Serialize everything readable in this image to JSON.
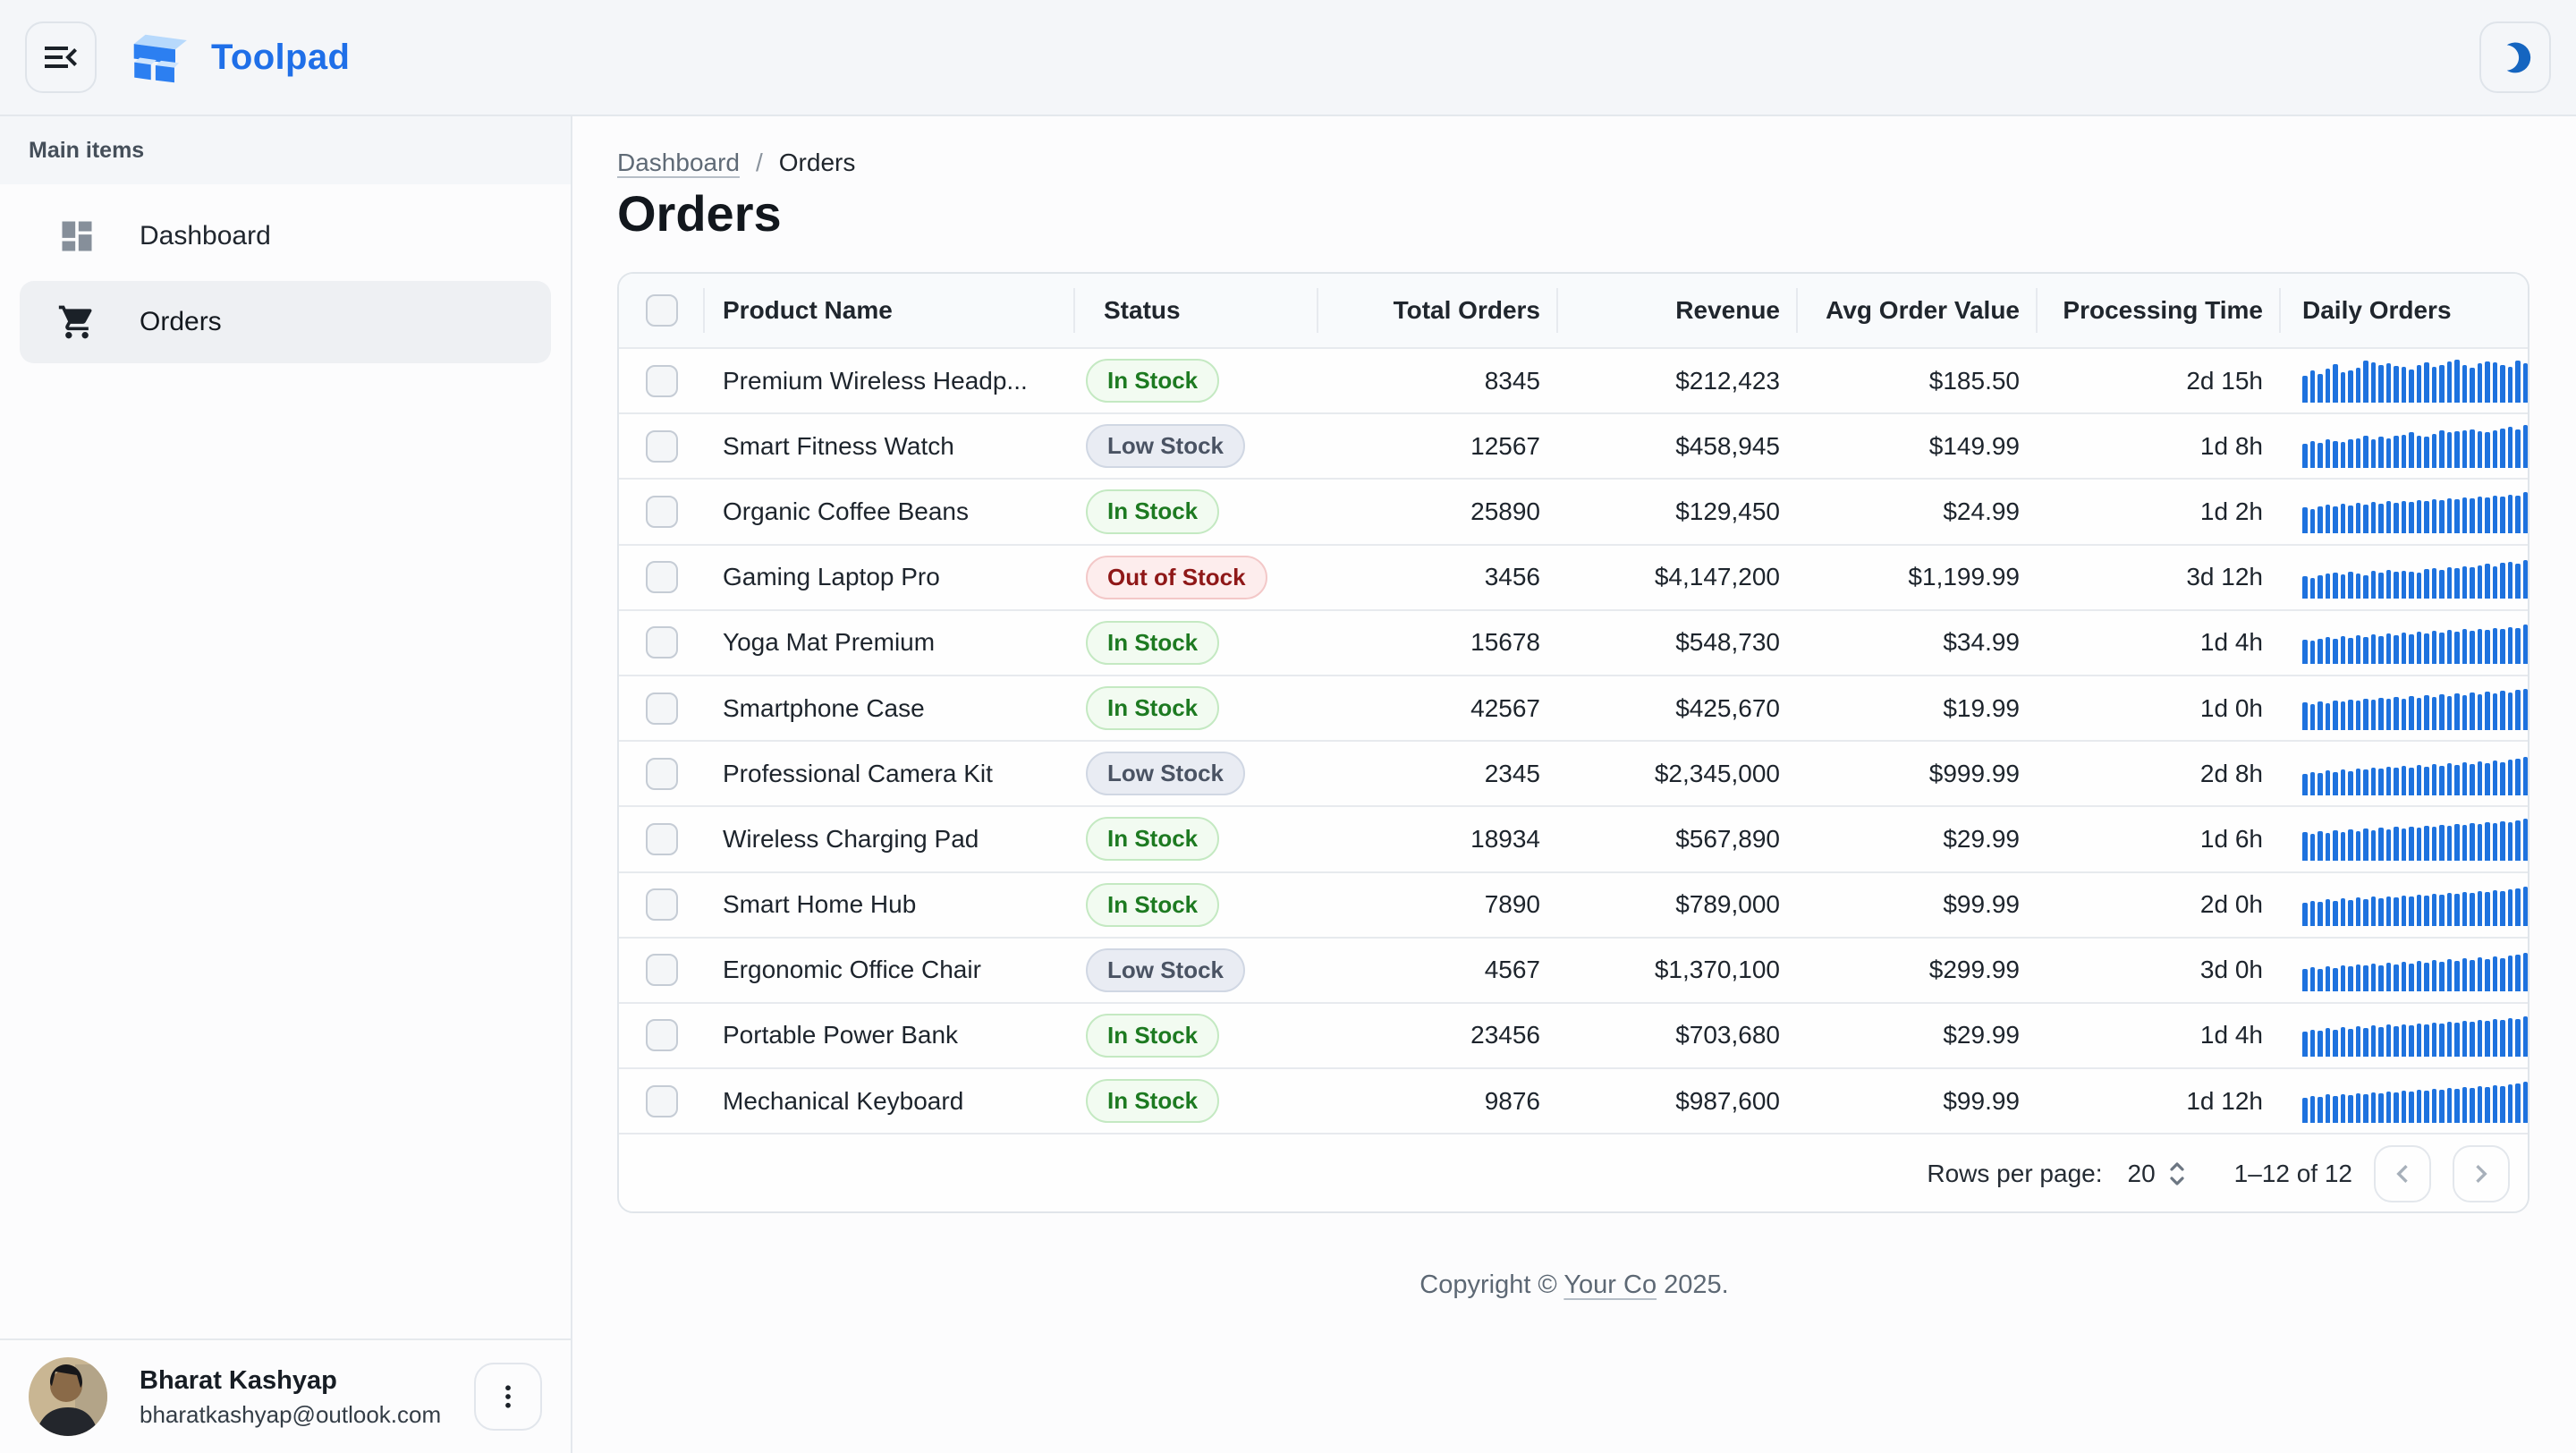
{
  "app": {
    "title": "Toolpad"
  },
  "colors": {
    "brand_blue": "#1f6fe8",
    "moon_blue": "#1565c0",
    "bar_blue": "#1e72de",
    "chip_success_text": "#1d7a21",
    "chip_neutral_text": "#4a5363",
    "chip_error_text": "#8f1818",
    "topbar_bg": "#f4f6f9",
    "selected_item_bg": "#eef0f3"
  },
  "sidebar": {
    "section_label": "Main items",
    "items": [
      {
        "label": "Dashboard",
        "icon": "dashboard-icon",
        "active": false
      },
      {
        "label": "Orders",
        "icon": "cart-icon",
        "active": true
      }
    ],
    "user": {
      "name": "Bharat Kashyap",
      "email": "bharatkashyap@outlook.com"
    }
  },
  "breadcrumb": {
    "dashboard": "Dashboard",
    "separator": "/",
    "current": "Orders"
  },
  "page": {
    "title": "Orders"
  },
  "table": {
    "columns": [
      {
        "label": "Product Name"
      },
      {
        "label": "Status"
      },
      {
        "label": "Total Orders"
      },
      {
        "label": "Revenue"
      },
      {
        "label": "Avg Order Value"
      },
      {
        "label": "Processing Time"
      },
      {
        "label": "Daily Orders"
      }
    ],
    "rows": [
      {
        "name": "Premium Wireless Headp...",
        "status": "In Stock",
        "status_type": "success",
        "total_orders": "8345",
        "revenue": "$212,423",
        "avg_order_value": "$185.50",
        "processing_time": "2d 15h",
        "daily_orders": [
          62,
          75,
          66,
          79,
          88,
          70,
          74,
          81,
          97,
          92,
          86,
          90,
          84,
          82,
          77,
          87,
          92,
          82,
          87,
          96,
          100,
          87,
          80,
          90,
          94,
          92,
          87,
          82,
          97,
          90
        ]
      },
      {
        "name": "Smart Fitness Watch",
        "status": "Low Stock",
        "status_type": "neutral",
        "total_orders": "12567",
        "revenue": "$458,945",
        "avg_order_value": "$149.99",
        "processing_time": "1d 8h",
        "daily_orders": [
          56,
          62,
          58,
          66,
          63,
          60,
          66,
          69,
          74,
          67,
          72,
          69,
          74,
          77,
          82,
          75,
          73,
          79,
          87,
          82,
          84,
          87,
          90,
          85,
          82,
          87,
          92,
          95,
          90,
          100
        ]
      },
      {
        "name": "Organic Coffee Beans",
        "status": "In Stock",
        "status_type": "success",
        "total_orders": "25890",
        "revenue": "$129,450",
        "avg_order_value": "$24.99",
        "processing_time": "1d 2h",
        "daily_orders": [
          60,
          57,
          63,
          66,
          62,
          68,
          65,
          70,
          67,
          72,
          69,
          74,
          71,
          76,
          73,
          78,
          75,
          80,
          77,
          82,
          79,
          84,
          81,
          86,
          83,
          88,
          85,
          90,
          87,
          95
        ]
      },
      {
        "name": "Gaming Laptop Pro",
        "status": "Out of Stock",
        "status_type": "error",
        "total_orders": "3456",
        "revenue": "$4,147,200",
        "avg_order_value": "$1,199.99",
        "processing_time": "3d 12h",
        "daily_orders": [
          52,
          48,
          55,
          58,
          60,
          56,
          62,
          58,
          54,
          64,
          60,
          67,
          62,
          65,
          62,
          60,
          70,
          72,
          68,
          74,
          72,
          76,
          74,
          78,
          82,
          76,
          84,
          86,
          82,
          90
        ]
      },
      {
        "name": "Yoga Mat Premium",
        "status": "In Stock",
        "status_type": "success",
        "total_orders": "15678",
        "revenue": "$548,730",
        "avg_order_value": "$34.99",
        "processing_time": "1d 4h",
        "daily_orders": [
          58,
          54,
          60,
          63,
          59,
          65,
          62,
          67,
          64,
          69,
          66,
          71,
          68,
          73,
          70,
          75,
          72,
          77,
          74,
          79,
          76,
          81,
          78,
          83,
          80,
          85,
          82,
          87,
          84,
          92
        ]
      },
      {
        "name": "Smartphone Case",
        "status": "In Stock",
        "status_type": "success",
        "total_orders": "42567",
        "revenue": "$425,670",
        "avg_order_value": "$19.99",
        "processing_time": "1d 0h",
        "daily_orders": [
          64,
          60,
          66,
          62,
          68,
          65,
          70,
          67,
          72,
          69,
          74,
          71,
          76,
          73,
          78,
          75,
          80,
          77,
          82,
          79,
          84,
          81,
          86,
          83,
          88,
          85,
          90,
          87,
          92,
          95
        ]
      },
      {
        "name": "Professional Camera Kit",
        "status": "Low Stock",
        "status_type": "neutral",
        "total_orders": "2345",
        "revenue": "$2,345,000",
        "avg_order_value": "$999.99",
        "processing_time": "2d 8h",
        "daily_orders": [
          50,
          54,
          51,
          57,
          54,
          60,
          56,
          62,
          59,
          64,
          61,
          66,
          63,
          68,
          65,
          70,
          67,
          72,
          69,
          74,
          71,
          76,
          73,
          78,
          75,
          80,
          77,
          82,
          84,
          88
        ]
      },
      {
        "name": "Wireless Charging Pad",
        "status": "In Stock",
        "status_type": "success",
        "total_orders": "18934",
        "revenue": "$567,890",
        "avg_order_value": "$29.99",
        "processing_time": "1d 6h",
        "daily_orders": [
          66,
          62,
          68,
          64,
          70,
          67,
          72,
          69,
          74,
          71,
          76,
          73,
          78,
          75,
          80,
          77,
          82,
          79,
          84,
          81,
          86,
          83,
          88,
          85,
          90,
          87,
          92,
          89,
          94,
          97
        ]
      },
      {
        "name": "Smart Home Hub",
        "status": "In Stock",
        "status_type": "success",
        "total_orders": "7890",
        "revenue": "$789,000",
        "avg_order_value": "$99.99",
        "processing_time": "2d 0h",
        "daily_orders": [
          55,
          59,
          56,
          62,
          58,
          64,
          61,
          66,
          63,
          68,
          65,
          70,
          67,
          72,
          69,
          74,
          71,
          76,
          73,
          78,
          75,
          80,
          77,
          82,
          79,
          84,
          81,
          86,
          88,
          92
        ]
      },
      {
        "name": "Ergonomic Office Chair",
        "status": "Low Stock",
        "status_type": "neutral",
        "total_orders": "4567",
        "revenue": "$1,370,100",
        "avg_order_value": "$299.99",
        "processing_time": "3d 0h",
        "daily_orders": [
          52,
          56,
          53,
          59,
          55,
          61,
          58,
          63,
          60,
          65,
          62,
          67,
          64,
          69,
          66,
          71,
          68,
          73,
          70,
          75,
          72,
          77,
          74,
          79,
          76,
          81,
          78,
          83,
          85,
          90
        ]
      },
      {
        "name": "Portable Power Bank",
        "status": "In Stock",
        "status_type": "success",
        "total_orders": "23456",
        "revenue": "$703,680",
        "avg_order_value": "$29.99",
        "processing_time": "1d 4h",
        "daily_orders": [
          60,
          64,
          61,
          67,
          63,
          69,
          66,
          71,
          68,
          73,
          70,
          75,
          72,
          77,
          74,
          79,
          76,
          81,
          78,
          83,
          80,
          85,
          82,
          87,
          84,
          89,
          86,
          91,
          88,
          94
        ]
      },
      {
        "name": "Mechanical Keyboard",
        "status": "In Stock",
        "status_type": "success",
        "total_orders": "9876",
        "revenue": "$987,600",
        "avg_order_value": "$99.99",
        "processing_time": "1d 12h",
        "daily_orders": [
          58,
          62,
          59,
          65,
          61,
          67,
          64,
          69,
          66,
          71,
          68,
          73,
          70,
          75,
          72,
          77,
          74,
          79,
          76,
          81,
          78,
          83,
          80,
          85,
          82,
          87,
          84,
          89,
          91,
          95
        ]
      }
    ]
  },
  "pagination": {
    "rows_per_page_label": "Rows per page:",
    "rows_per_page": "20",
    "range": "1–12 of 12"
  },
  "footer": {
    "prefix": "Copyright © ",
    "link": "Your Co",
    "suffix": " 2025."
  }
}
